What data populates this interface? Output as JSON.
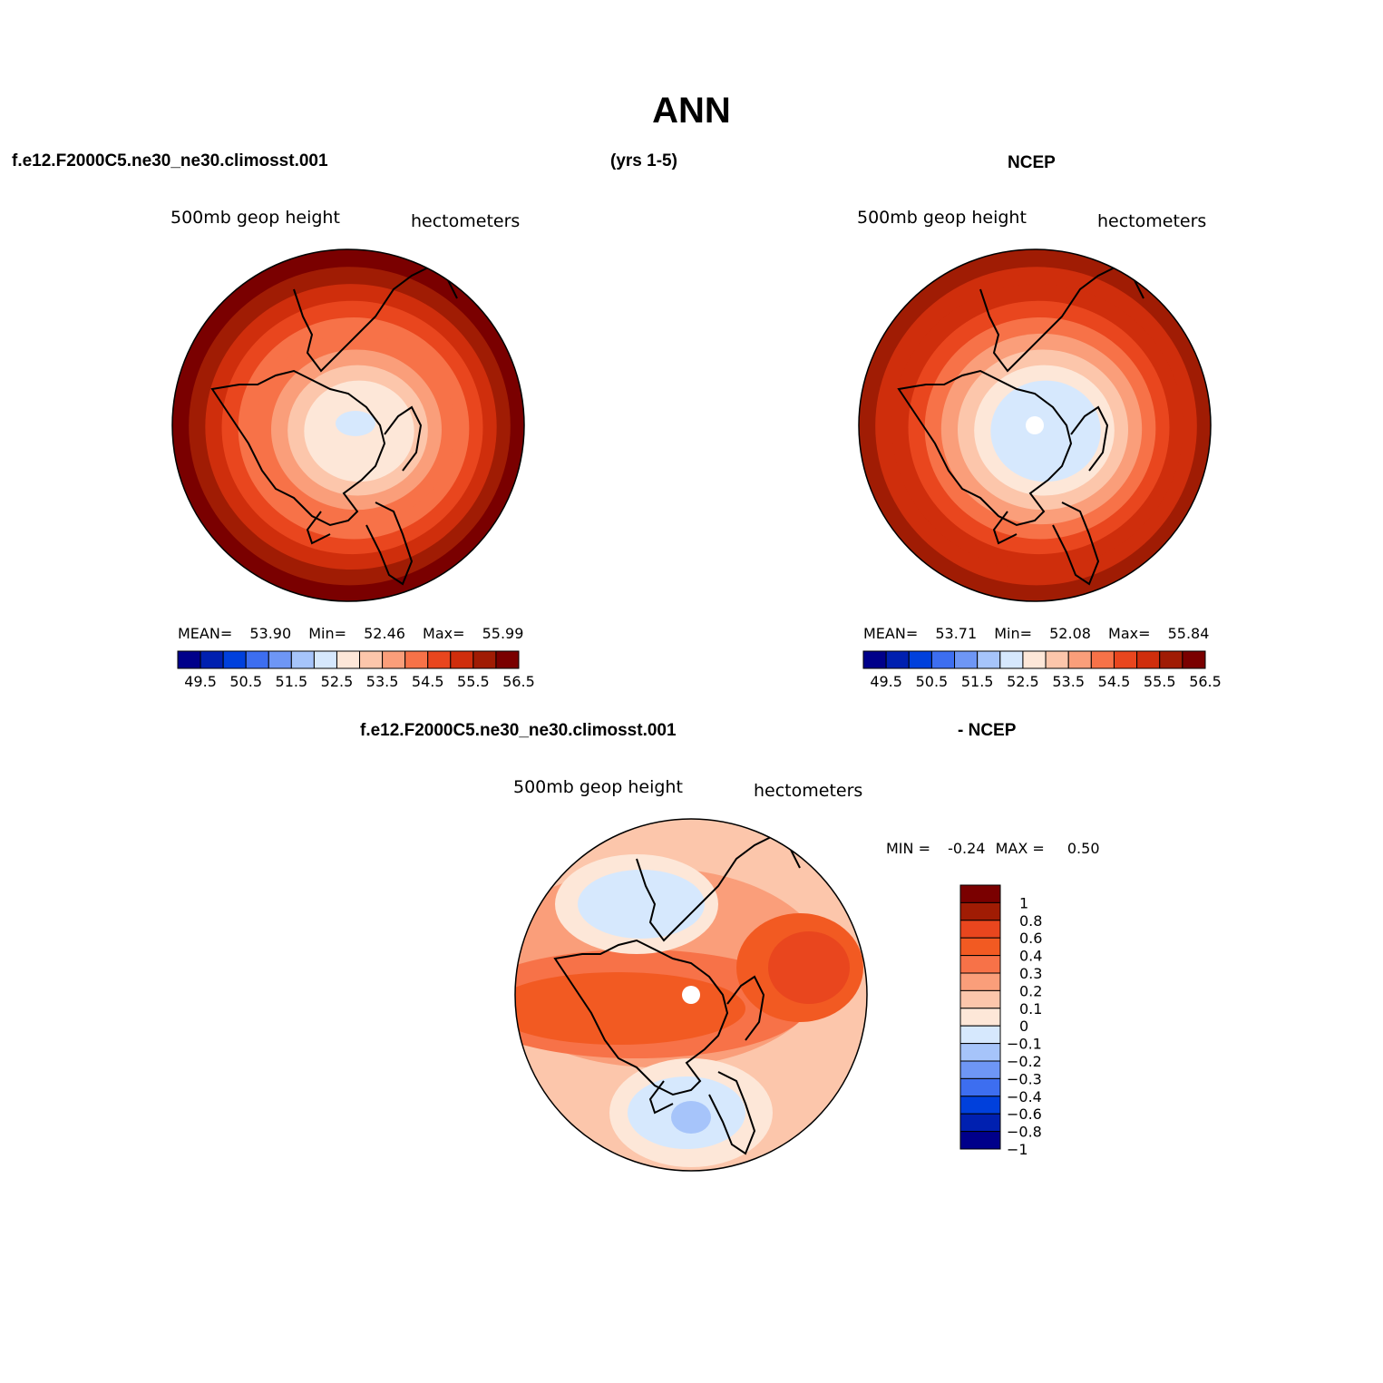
{
  "page": {
    "title": "ANN",
    "left_header": "f.e12.F2000C5.ne30_ne30.climosst.001",
    "mid_header": "(yrs 1-5)",
    "right_header": "NCEP",
    "diff_header_left": "f.e12.F2000C5.ne30_ne30.climosst.001",
    "diff_header_right": "- NCEP"
  },
  "colors": {
    "seq_scale": [
      "#00008a",
      "#0020b0",
      "#0040dc",
      "#3d6ef0",
      "#6e96f5",
      "#a6c4fa",
      "#d6e8fd",
      "#fde7d8",
      "#fcc6ab",
      "#fa9e7a",
      "#f77248",
      "#e9461e",
      "#cf2e0c",
      "#a01c04",
      "#7a0000"
    ],
    "diff_scale": [
      "#00008a",
      "#0020b0",
      "#0040dc",
      "#3d6ef0",
      "#6e96f5",
      "#a6c4fa",
      "#d6e8fd",
      "#fde7d8",
      "#fcc6ab",
      "#fa9e7a",
      "#f77248",
      "#f25a22",
      "#e9461e",
      "#a01c04",
      "#7a0000"
    ],
    "circle_stroke": "#000000"
  },
  "chart_data": [
    {
      "type": "contour-map",
      "projection": "north-polar-stereographic",
      "subtitle_left": "500mb geop height",
      "subtitle_right": "hectometers",
      "stats": {
        "mean_label": "MEAN=",
        "mean": "53.90",
        "min_label": "Min=",
        "min": "52.46",
        "max_label": "Max=",
        "max": "55.99"
      },
      "colorbar_labels": [
        "49.5",
        "50.5",
        "51.5",
        "52.5",
        "53.5",
        "54.5",
        "55.5",
        "56.5"
      ],
      "levels": [
        49.5,
        50,
        50.5,
        51,
        51.5,
        52,
        52.5,
        53,
        53.5,
        54,
        54.5,
        55,
        55.5,
        56,
        56.5
      ],
      "rings": [
        56.0,
        55.6,
        55.2,
        54.8,
        54.4,
        54.0,
        53.6,
        53.1,
        52.6
      ],
      "min_patch": 52.4
    },
    {
      "type": "contour-map",
      "projection": "north-polar-stereographic",
      "subtitle_left": "500mb geop height",
      "subtitle_right": "hectometers",
      "stats": {
        "mean_label": "MEAN=",
        "mean": "53.71",
        "min_label": "Min=",
        "min": "52.08",
        "max_label": "Max=",
        "max": "55.84"
      },
      "colorbar_labels": [
        "49.5",
        "50.5",
        "51.5",
        "52.5",
        "53.5",
        "54.5",
        "55.5",
        "56.5"
      ],
      "levels": [
        49.5,
        50,
        50.5,
        51,
        51.5,
        52,
        52.5,
        53,
        53.5,
        54,
        54.5,
        55,
        55.5,
        56,
        56.5
      ],
      "rings": [
        55.8,
        55.4,
        55.0,
        54.6,
        54.2,
        53.8,
        53.3,
        52.8,
        52.3
      ],
      "min_patch": 52.1
    },
    {
      "type": "contour-map-difference",
      "projection": "north-polar-stereographic",
      "subtitle_left": "500mb geop height",
      "subtitle_right": "hectometers",
      "stats": {
        "min_label": "MIN =",
        "min": "-0.24",
        "max_label": "MAX =",
        "max": "0.50"
      },
      "colorbar_labels": [
        "1",
        "0.8",
        "0.6",
        "0.4",
        "0.3",
        "0.2",
        "0.1",
        "0",
        "-0.1",
        "-0.2",
        "-0.3",
        "-0.4",
        "-0.6",
        "-0.8",
        "-1"
      ],
      "levels": [
        -1,
        -0.8,
        -0.6,
        -0.4,
        -0.3,
        -0.2,
        -0.1,
        0,
        0.1,
        0.2,
        0.3,
        0.4,
        0.6,
        0.8,
        1
      ]
    }
  ]
}
